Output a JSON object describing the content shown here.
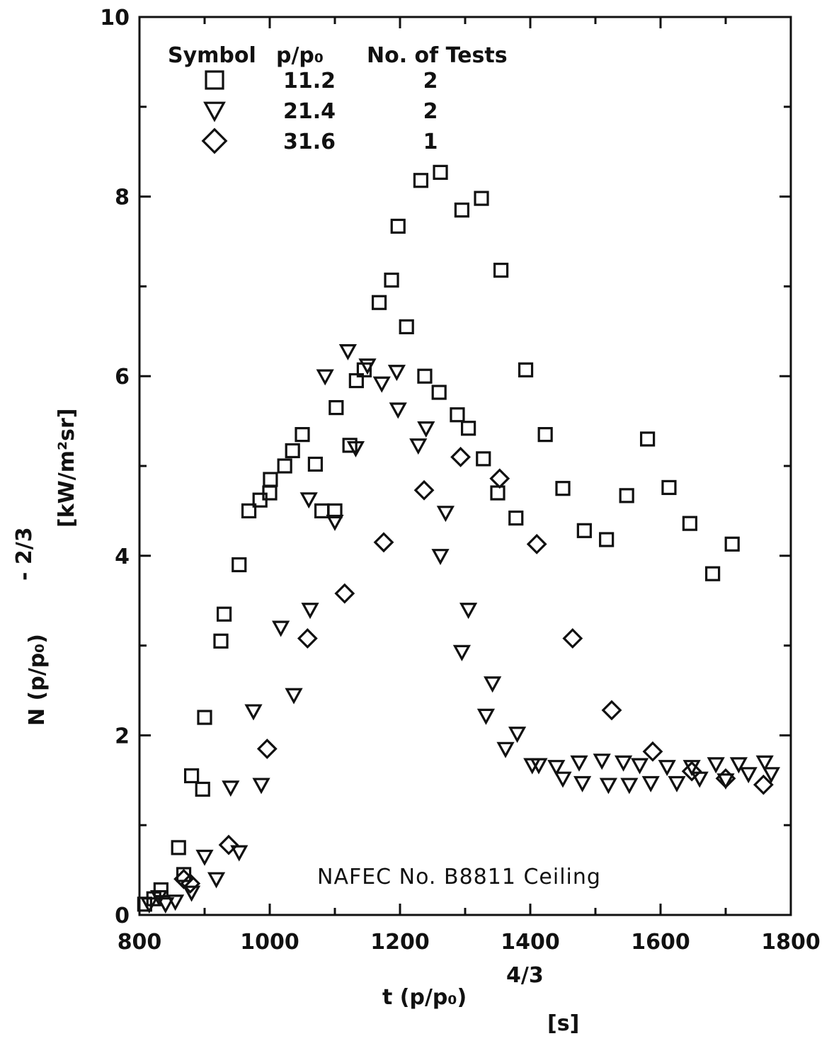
{
  "chart_data": {
    "type": "scatter",
    "title": "",
    "xlabel": {
      "main": "t (p/p₀)",
      "exponent": "4/3",
      "unit": "[s]"
    },
    "ylabel": {
      "main": "N (p/p₀)",
      "exponent": "- 2/3",
      "unit": "[kW/m²sr]"
    },
    "xlim": [
      800,
      1800
    ],
    "ylim": [
      0,
      10
    ],
    "x_ticks": [
      "800",
      "1000",
      "1200",
      "1400",
      "1600",
      "1800"
    ],
    "y_ticks": [
      "0",
      "2",
      "4",
      "6",
      "8",
      "10"
    ],
    "grid": false,
    "legend": {
      "position": "top-left",
      "headers": [
        "Symbol",
        "p/p₀",
        "No. of Tests"
      ],
      "entries": [
        {
          "marker": "square",
          "ratio": "11.2",
          "tests": "2"
        },
        {
          "marker": "triangle-down",
          "ratio": "21.4",
          "tests": "2"
        },
        {
          "marker": "diamond",
          "ratio": "31.6",
          "tests": "1"
        }
      ]
    },
    "annotation": "NAFEC  No. B8811 Ceiling",
    "series": [
      {
        "name": "11.2",
        "marker": "square",
        "points": [
          [
            808,
            0.12
          ],
          [
            822,
            0.18
          ],
          [
            833,
            0.28
          ],
          [
            860,
            0.75
          ],
          [
            868,
            0.45
          ],
          [
            880,
            1.55
          ],
          [
            897,
            1.4
          ],
          [
            900,
            2.2
          ],
          [
            925,
            3.05
          ],
          [
            930,
            3.35
          ],
          [
            953,
            3.9
          ],
          [
            968,
            4.5
          ],
          [
            985,
            4.62
          ],
          [
            1000,
            4.7
          ],
          [
            1001,
            4.85
          ],
          [
            1023,
            5.0
          ],
          [
            1035,
            5.17
          ],
          [
            1050,
            5.35
          ],
          [
            1070,
            5.02
          ],
          [
            1080,
            4.5
          ],
          [
            1100,
            4.5
          ],
          [
            1102,
            5.65
          ],
          [
            1123,
            5.23
          ],
          [
            1133,
            5.95
          ],
          [
            1145,
            6.07
          ],
          [
            1168,
            6.82
          ],
          [
            1187,
            7.07
          ],
          [
            1197,
            7.67
          ],
          [
            1210,
            6.55
          ],
          [
            1232,
            8.18
          ],
          [
            1238,
            6.0
          ],
          [
            1262,
            8.27
          ],
          [
            1260,
            5.82
          ],
          [
            1288,
            5.57
          ],
          [
            1295,
            7.85
          ],
          [
            1305,
            5.42
          ],
          [
            1325,
            7.98
          ],
          [
            1328,
            5.08
          ],
          [
            1350,
            4.7
          ],
          [
            1355,
            7.18
          ],
          [
            1378,
            4.42
          ],
          [
            1393,
            6.07
          ],
          [
            1423,
            5.35
          ],
          [
            1450,
            4.75
          ],
          [
            1483,
            4.28
          ],
          [
            1517,
            4.18
          ],
          [
            1548,
            4.67
          ],
          [
            1580,
            5.3
          ],
          [
            1613,
            4.76
          ],
          [
            1645,
            4.36
          ],
          [
            1680,
            3.8
          ],
          [
            1710,
            4.13
          ]
        ]
      },
      {
        "name": "21.4",
        "marker": "triangle-down",
        "points": [
          [
            815,
            0.12
          ],
          [
            830,
            0.2
          ],
          [
            840,
            0.12
          ],
          [
            855,
            0.15
          ],
          [
            880,
            0.25
          ],
          [
            900,
            0.65
          ],
          [
            918,
            0.4
          ],
          [
            940,
            1.42
          ],
          [
            953,
            0.7
          ],
          [
            975,
            2.27
          ],
          [
            987,
            1.45
          ],
          [
            1017,
            3.2
          ],
          [
            1037,
            2.45
          ],
          [
            1060,
            4.63
          ],
          [
            1062,
            3.4
          ],
          [
            1085,
            6.0
          ],
          [
            1100,
            4.38
          ],
          [
            1120,
            6.28
          ],
          [
            1132,
            5.2
          ],
          [
            1150,
            6.12
          ],
          [
            1172,
            5.92
          ],
          [
            1195,
            6.05
          ],
          [
            1197,
            5.63
          ],
          [
            1228,
            5.23
          ],
          [
            1240,
            5.42
          ],
          [
            1262,
            4.0
          ],
          [
            1270,
            4.48
          ],
          [
            1295,
            2.93
          ],
          [
            1305,
            3.4
          ],
          [
            1342,
            2.58
          ],
          [
            1332,
            2.22
          ],
          [
            1362,
            1.85
          ],
          [
            1380,
            2.02
          ],
          [
            1403,
            1.67
          ],
          [
            1413,
            1.67
          ],
          [
            1440,
            1.65
          ],
          [
            1450,
            1.52
          ],
          [
            1475,
            1.7
          ],
          [
            1480,
            1.47
          ],
          [
            1510,
            1.72
          ],
          [
            1520,
            1.45
          ],
          [
            1543,
            1.7
          ],
          [
            1552,
            1.45
          ],
          [
            1568,
            1.67
          ],
          [
            1585,
            1.47
          ],
          [
            1610,
            1.65
          ],
          [
            1625,
            1.47
          ],
          [
            1648,
            1.65
          ],
          [
            1660,
            1.52
          ],
          [
            1685,
            1.68
          ],
          [
            1700,
            1.5
          ],
          [
            1720,
            1.68
          ],
          [
            1735,
            1.57
          ],
          [
            1760,
            1.7
          ],
          [
            1770,
            1.57
          ]
        ]
      },
      {
        "name": "31.6",
        "marker": "diamond",
        "points": [
          [
            868,
            0.4
          ],
          [
            878,
            0.35
          ],
          [
            937,
            0.78
          ],
          [
            996,
            1.85
          ],
          [
            1058,
            3.08
          ],
          [
            1115,
            3.58
          ],
          [
            1175,
            4.15
          ],
          [
            1237,
            4.73
          ],
          [
            1293,
            5.1
          ],
          [
            1353,
            4.86
          ],
          [
            1410,
            4.13
          ],
          [
            1465,
            3.08
          ],
          [
            1525,
            2.28
          ],
          [
            1588,
            1.82
          ],
          [
            1648,
            1.6
          ],
          [
            1700,
            1.52
          ],
          [
            1758,
            1.45
          ]
        ]
      }
    ]
  }
}
